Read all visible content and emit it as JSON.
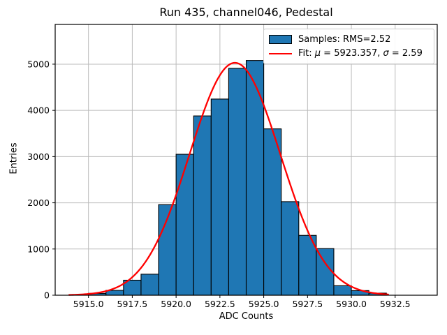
{
  "title": "Run 435, channel046, Pedestal",
  "axes": {
    "xlabel": "ADC Counts",
    "ylabel": "Entries"
  },
  "legend": {
    "samples_label": "Samples: RMS=2.52",
    "fit_label": "Fit: μ = 5923.357, σ = 2.59",
    "position": "upper right"
  },
  "colors": {
    "bar_fill": "#1f77b4",
    "bar_edge": "#000000",
    "fit_line": "#ff0000",
    "grid": "#bbbbbb",
    "spine": "#000000",
    "background": "#ffffff"
  },
  "chart_data": {
    "type": "bar",
    "title": "Run 435, channel046, Pedestal",
    "xlabel": "ADC Counts",
    "ylabel": "Entries",
    "grid": true,
    "legend_position": "upper right",
    "bin_width": 1,
    "bin_left_edges": [
      5915,
      5916,
      5917,
      5918,
      5919,
      5920,
      5921,
      5922,
      5923,
      5924,
      5925,
      5926,
      5927,
      5928,
      5929,
      5930,
      5931
    ],
    "values": [
      40,
      105,
      325,
      455,
      1960,
      3050,
      3880,
      4245,
      4910,
      5080,
      3600,
      2025,
      1295,
      1010,
      205,
      100,
      45
    ],
    "rms": 2.52,
    "fit": {
      "mu": 5923.357,
      "sigma": 2.59,
      "amplitude": 5030,
      "x_start": 5913.9,
      "x_end": 5932.1
    },
    "xlim": [
      5913.1,
      5934.9
    ],
    "ylim": [
      0,
      5860
    ],
    "xticks": {
      "values": [
        5915,
        5917.5,
        5920,
        5922.5,
        5925,
        5927.5,
        5930,
        5932.5
      ],
      "labels": [
        "5915.0",
        "5917.5",
        "5920.0",
        "5922.5",
        "5925.0",
        "5927.5",
        "5930.0",
        "5932.5"
      ]
    },
    "yticks": {
      "values": [
        0,
        1000,
        2000,
        3000,
        4000,
        5000
      ],
      "labels": [
        "0",
        "1000",
        "2000",
        "3000",
        "4000",
        "5000"
      ]
    }
  }
}
